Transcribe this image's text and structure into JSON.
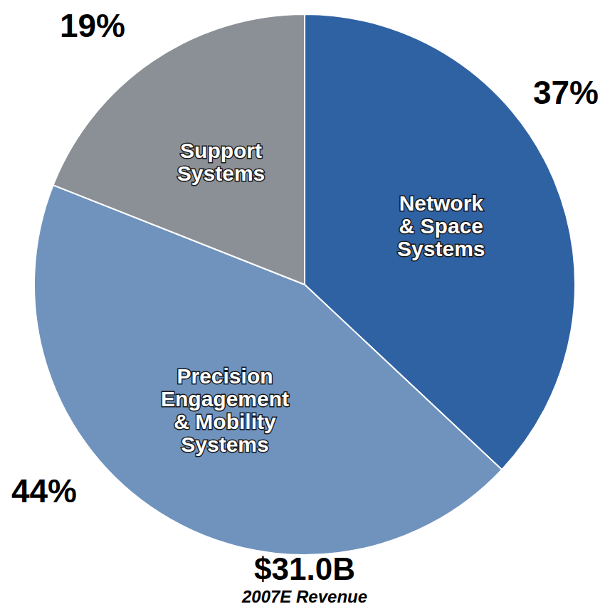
{
  "chart_data": {
    "type": "pie",
    "title": "$31.0B",
    "subtitle": "2007E Revenue",
    "categories": [
      "Network & Space Systems",
      "Precision Engagement & Mobility Systems",
      "Support Systems"
    ],
    "values": [
      37,
      44,
      19
    ],
    "value_labels": [
      "37%",
      "44%",
      "19%"
    ],
    "colors": [
      "#2f62a3",
      "#6f93bd",
      "#8b9096"
    ],
    "data_labels": true
  }
}
